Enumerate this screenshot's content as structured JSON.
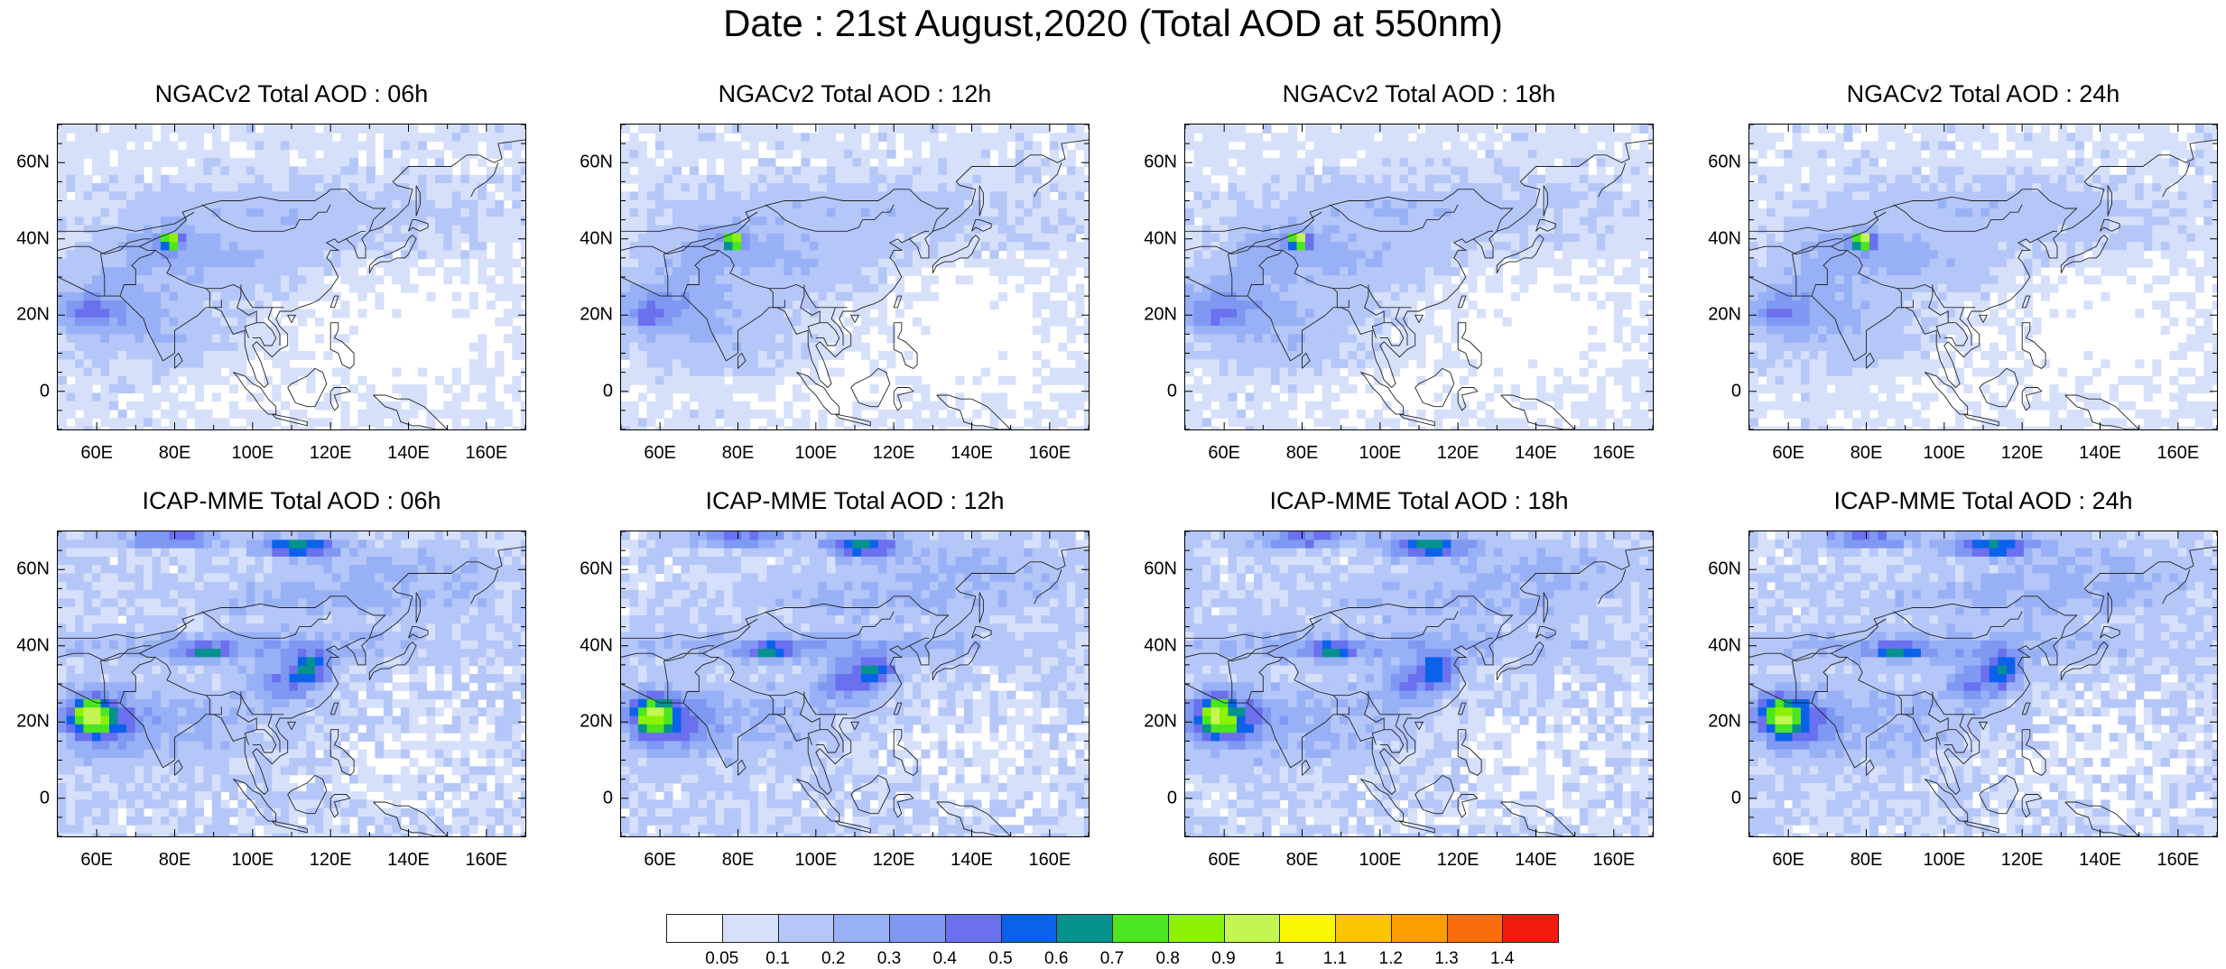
{
  "title": "Date : 21st August,2020 (Total AOD at 550nm)",
  "panels": [
    {
      "title": "NGACv2 Total AOD : 06h",
      "model": "ngac",
      "hour": 6
    },
    {
      "title": "NGACv2 Total AOD : 12h",
      "model": "ngac",
      "hour": 12
    },
    {
      "title": "NGACv2 Total AOD : 18h",
      "model": "ngac",
      "hour": 18
    },
    {
      "title": "NGACv2 Total AOD : 24h",
      "model": "ngac",
      "hour": 24
    },
    {
      "title": "ICAP-MME Total AOD : 06h",
      "model": "icap",
      "hour": 6
    },
    {
      "title": "ICAP-MME Total AOD : 12h",
      "model": "icap",
      "hour": 12
    },
    {
      "title": "ICAP-MME Total AOD : 18h",
      "model": "icap",
      "hour": 18
    },
    {
      "title": "ICAP-MME Total AOD : 24h",
      "model": "icap",
      "hour": 24
    }
  ],
  "axes": {
    "lat_labels": [
      "60N",
      "40N",
      "20N",
      "0"
    ],
    "lon_labels": [
      "60E",
      "80E",
      "100E",
      "120E",
      "140E",
      "160E"
    ]
  },
  "legend": {
    "labels": [
      "0.05",
      "0.1",
      "0.2",
      "0.3",
      "0.4",
      "0.5",
      "0.6",
      "0.7",
      "0.8",
      "0.9",
      "1",
      "1.1",
      "1.2",
      "1.3",
      "1.4"
    ],
    "colors": [
      "#ffffff",
      "#d6e0fb",
      "#b5c6f8",
      "#98b0f6",
      "#7f98f2",
      "#6a70ee",
      "#0b62ea",
      "#05928f",
      "#4be621",
      "#8cf201",
      "#c3f652",
      "#fbf700",
      "#fbc400",
      "#fc9d02",
      "#f96d0c",
      "#f41a10"
    ]
  }
}
